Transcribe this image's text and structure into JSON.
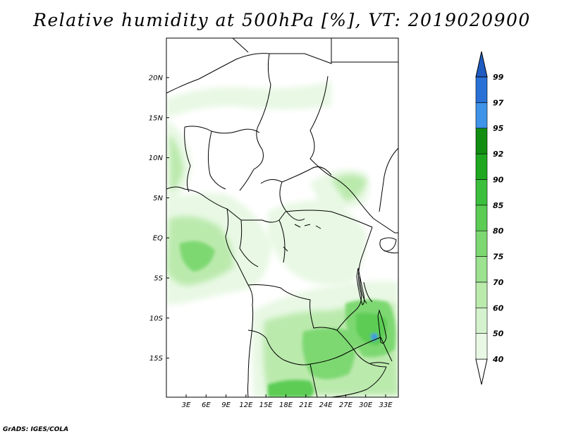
{
  "title": "Relative humidity at 500hPa [%], VT: 2019020900",
  "credit": "GrADS: IGES/COLA",
  "map": {
    "lon_ticks": [
      "3E",
      "6E",
      "9E",
      "12E",
      "15E",
      "18E",
      "21E",
      "24E",
      "27E",
      "30E",
      "33E"
    ],
    "lat_ticks": [
      "20N",
      "15N",
      "10N",
      "5N",
      "EQ",
      "5S",
      "10S",
      "15S"
    ]
  },
  "colorbar": {
    "labels": [
      "40",
      "50",
      "60",
      "70",
      "75",
      "80",
      "85",
      "90",
      "92",
      "95",
      "97",
      "99"
    ],
    "colors": [
      "#ffffff",
      "#e8f8e4",
      "#d4f2cd",
      "#bbeaad",
      "#9ce290",
      "#7ed872",
      "#5ccc55",
      "#3cbf3c",
      "#1fa81f",
      "#118e11",
      "#3f93e8",
      "#2870d6",
      "#1f5cc2"
    ]
  },
  "colors": {
    "land_boundaries": "#000000",
    "moist_green": "#7ed872",
    "light_green": "#e8f8e4"
  }
}
